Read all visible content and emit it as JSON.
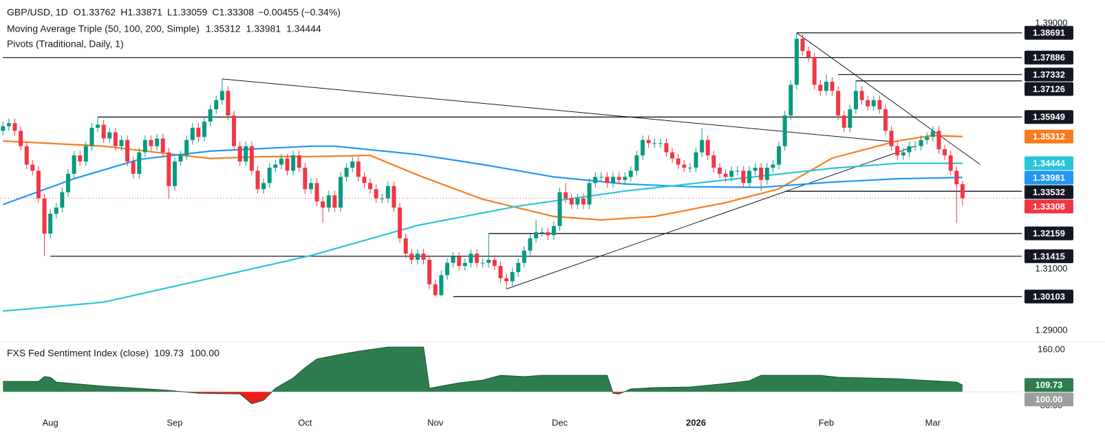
{
  "chart_data": {
    "type": "candlestick",
    "symbol": "GBP/USD, 1D",
    "ohlc_prefixes": [
      "O",
      "H",
      "L",
      "C"
    ],
    "change": "−0.00455 (−0.34%)",
    "ma_title": "Moving Average Triple (50, 100, 200, Simple)",
    "pivot_title": "Pivots (Traditional, Daily, 1)",
    "up_color": "#089981",
    "down_color": "#f23645",
    "xlim": [
      -0.5,
      172
    ],
    "ylim": [
      1.2875,
      1.3976
    ],
    "yticks": [
      {
        "value": 1.39,
        "label": "1.39000"
      },
      {
        "value": 1.31,
        "label": "1.31000"
      },
      {
        "value": 1.29,
        "label": "1.29000"
      }
    ],
    "xticks": [
      {
        "value": 8,
        "label": "Aug"
      },
      {
        "value": 29,
        "label": "Sep"
      },
      {
        "value": 51,
        "label": "Oct"
      },
      {
        "value": 73,
        "label": "Nov"
      },
      {
        "value": 94,
        "label": "Dec"
      },
      {
        "value": 117,
        "label": "2026"
      },
      {
        "value": 139,
        "label": "Feb"
      },
      {
        "value": 157,
        "label": "Mar"
      }
    ],
    "candles": [
      [
        1.355,
        1.358,
        1.3535,
        1.3565
      ],
      [
        1.3565,
        1.359,
        1.355,
        1.3575
      ],
      [
        1.3575,
        1.359,
        1.3535,
        1.355
      ],
      [
        1.355,
        1.3565,
        1.3485,
        1.35
      ],
      [
        1.35,
        1.3515,
        1.3425,
        1.344
      ],
      [
        1.344,
        1.3455,
        1.3405,
        1.342
      ],
      [
        1.342,
        1.3435,
        1.3315,
        1.333
      ],
      [
        1.333,
        1.3345,
        1.3142,
        1.3215
      ],
      [
        1.3215,
        1.3295,
        1.32,
        1.328
      ],
      [
        1.328,
        1.3315,
        1.3265,
        1.33
      ],
      [
        1.33,
        1.3365,
        1.3285,
        1.335
      ],
      [
        1.335,
        1.3425,
        1.3335,
        1.341
      ],
      [
        1.341,
        1.3485,
        1.3395,
        1.347
      ],
      [
        1.347,
        1.3485,
        1.3435,
        1.345
      ],
      [
        1.345,
        1.3515,
        1.3435,
        1.35
      ],
      [
        1.35,
        1.3575,
        1.3485,
        1.356
      ],
      [
        1.356,
        1.3595,
        1.3545,
        1.357
      ],
      [
        1.357,
        1.3585,
        1.351,
        1.3525
      ],
      [
        1.3525,
        1.356,
        1.351,
        1.3545
      ],
      [
        1.3545,
        1.356,
        1.3485,
        1.35
      ],
      [
        1.35,
        1.3535,
        1.3485,
        1.352
      ],
      [
        1.352,
        1.3535,
        1.3435,
        1.345
      ],
      [
        1.345,
        1.3465,
        1.3395,
        1.341
      ],
      [
        1.341,
        1.3495,
        1.3395,
        1.348
      ],
      [
        1.348,
        1.3535,
        1.3465,
        1.352
      ],
      [
        1.352,
        1.3535,
        1.3485,
        1.35
      ],
      [
        1.35,
        1.354,
        1.3485,
        1.3525
      ],
      [
        1.3525,
        1.354,
        1.3465,
        1.348
      ],
      [
        1.348,
        1.3495,
        1.333,
        1.337
      ],
      [
        1.337,
        1.3465,
        1.3355,
        1.345
      ],
      [
        1.345,
        1.3485,
        1.3435,
        1.347
      ],
      [
        1.347,
        1.3535,
        1.3455,
        1.352
      ],
      [
        1.352,
        1.3575,
        1.3505,
        1.356
      ],
      [
        1.356,
        1.3575,
        1.3515,
        1.353
      ],
      [
        1.353,
        1.3595,
        1.3515,
        1.358
      ],
      [
        1.358,
        1.3635,
        1.3565,
        1.362
      ],
      [
        1.362,
        1.3665,
        1.3605,
        1.365
      ],
      [
        1.365,
        1.3719,
        1.3635,
        1.368
      ],
      [
        1.368,
        1.3695,
        1.3585,
        1.36
      ],
      [
        1.36,
        1.3615,
        1.3485,
        1.35
      ],
      [
        1.35,
        1.3515,
        1.3435,
        1.345
      ],
      [
        1.345,
        1.3515,
        1.3435,
        1.35
      ],
      [
        1.35,
        1.3515,
        1.3405,
        1.342
      ],
      [
        1.342,
        1.3435,
        1.3345,
        1.336
      ],
      [
        1.336,
        1.3395,
        1.3345,
        1.338
      ],
      [
        1.338,
        1.3445,
        1.3365,
        1.343
      ],
      [
        1.343,
        1.3455,
        1.3415,
        1.344
      ],
      [
        1.344,
        1.3475,
        1.3425,
        1.346
      ],
      [
        1.346,
        1.3475,
        1.3405,
        1.342
      ],
      [
        1.342,
        1.3485,
        1.3405,
        1.347
      ],
      [
        1.347,
        1.3485,
        1.3415,
        1.343
      ],
      [
        1.343,
        1.3445,
        1.3345,
        1.336
      ],
      [
        1.336,
        1.3395,
        1.3345,
        1.338
      ],
      [
        1.338,
        1.3395,
        1.3305,
        1.332
      ],
      [
        1.332,
        1.3335,
        1.325,
        1.33
      ],
      [
        1.33,
        1.3355,
        1.3285,
        1.334
      ],
      [
        1.334,
        1.3355,
        1.3285,
        1.33
      ],
      [
        1.33,
        1.3415,
        1.3285,
        1.34
      ],
      [
        1.34,
        1.3445,
        1.3385,
        1.343
      ],
      [
        1.343,
        1.3465,
        1.3415,
        1.345
      ],
      [
        1.345,
        1.3465,
        1.3385,
        1.34
      ],
      [
        1.34,
        1.3415,
        1.3365,
        1.338
      ],
      [
        1.338,
        1.3395,
        1.3345,
        1.336
      ],
      [
        1.336,
        1.3375,
        1.3315,
        1.333
      ],
      [
        1.333,
        1.3345,
        1.3315,
        1.333
      ],
      [
        1.333,
        1.3385,
        1.3315,
        1.337
      ],
      [
        1.337,
        1.3385,
        1.3285,
        1.33
      ],
      [
        1.33,
        1.3315,
        1.3185,
        1.32
      ],
      [
        1.32,
        1.3215,
        1.3135,
        1.315
      ],
      [
        1.315,
        1.3165,
        1.3115,
        1.313
      ],
      [
        1.313,
        1.3165,
        1.3115,
        1.315
      ],
      [
        1.315,
        1.3165,
        1.3115,
        1.313
      ],
      [
        1.313,
        1.3145,
        1.3035,
        1.305
      ],
      [
        1.305,
        1.3065,
        1.301,
        1.3015
      ],
      [
        1.3015,
        1.3095,
        1.3012,
        1.308
      ],
      [
        1.308,
        1.3135,
        1.3065,
        1.312
      ],
      [
        1.312,
        1.3155,
        1.3105,
        1.314
      ],
      [
        1.314,
        1.3155,
        1.3095,
        1.311
      ],
      [
        1.311,
        1.3135,
        1.3095,
        1.312
      ],
      [
        1.312,
        1.3165,
        1.3105,
        1.315
      ],
      [
        1.315,
        1.3165,
        1.3105,
        1.312
      ],
      [
        1.312,
        1.3135,
        1.3105,
        1.312
      ],
      [
        1.312,
        1.3216,
        1.3105,
        1.313
      ],
      [
        1.313,
        1.3145,
        1.3095,
        1.311
      ],
      [
        1.311,
        1.3125,
        1.3055,
        1.307
      ],
      [
        1.307,
        1.3085,
        1.3035,
        1.306
      ],
      [
        1.306,
        1.3105,
        1.3045,
        1.309
      ],
      [
        1.309,
        1.3135,
        1.3075,
        1.312
      ],
      [
        1.312,
        1.3175,
        1.3105,
        1.316
      ],
      [
        1.316,
        1.3215,
        1.3145,
        1.32
      ],
      [
        1.32,
        1.326,
        1.3185,
        1.322
      ],
      [
        1.322,
        1.3235,
        1.3205,
        1.322
      ],
      [
        1.322,
        1.3235,
        1.3195,
        1.321
      ],
      [
        1.321,
        1.3255,
        1.3195,
        1.324
      ],
      [
        1.324,
        1.3365,
        1.3225,
        1.335
      ],
      [
        1.335,
        1.338,
        1.3315,
        1.333
      ],
      [
        1.333,
        1.3345,
        1.3295,
        1.331
      ],
      [
        1.331,
        1.3345,
        1.3295,
        1.333
      ],
      [
        1.333,
        1.3345,
        1.3295,
        1.331
      ],
      [
        1.331,
        1.3395,
        1.3295,
        1.338
      ],
      [
        1.338,
        1.3415,
        1.3365,
        1.34
      ],
      [
        1.34,
        1.3415,
        1.3385,
        1.34
      ],
      [
        1.34,
        1.3415,
        1.3365,
        1.338
      ],
      [
        1.338,
        1.3415,
        1.3365,
        1.34
      ],
      [
        1.34,
        1.3415,
        1.3375,
        1.339
      ],
      [
        1.339,
        1.3415,
        1.3375,
        1.34
      ],
      [
        1.34,
        1.3435,
        1.3385,
        1.342
      ],
      [
        1.342,
        1.3485,
        1.3405,
        1.347
      ],
      [
        1.347,
        1.3535,
        1.3455,
        1.352
      ],
      [
        1.352,
        1.3535,
        1.3495,
        1.351
      ],
      [
        1.351,
        1.3525,
        1.3495,
        1.351
      ],
      [
        1.351,
        1.3525,
        1.3495,
        1.351
      ],
      [
        1.351,
        1.3525,
        1.3465,
        1.348
      ],
      [
        1.348,
        1.3495,
        1.3445,
        1.346
      ],
      [
        1.346,
        1.3475,
        1.3425,
        1.344
      ],
      [
        1.344,
        1.3455,
        1.3415,
        1.343
      ],
      [
        1.343,
        1.3445,
        1.3415,
        1.343
      ],
      [
        1.343,
        1.3495,
        1.3415,
        1.348
      ],
      [
        1.348,
        1.356,
        1.3465,
        1.352
      ],
      [
        1.352,
        1.3535,
        1.3455,
        1.347
      ],
      [
        1.347,
        1.3485,
        1.3415,
        1.343
      ],
      [
        1.343,
        1.3445,
        1.3395,
        1.341
      ],
      [
        1.341,
        1.3425,
        1.3385,
        1.34
      ],
      [
        1.34,
        1.3435,
        1.3385,
        1.342
      ],
      [
        1.342,
        1.3435,
        1.3405,
        1.342
      ],
      [
        1.342,
        1.3435,
        1.3365,
        1.338
      ],
      [
        1.338,
        1.3435,
        1.3365,
        1.342
      ],
      [
        1.342,
        1.3445,
        1.3405,
        1.343
      ],
      [
        1.343,
        1.3445,
        1.3353,
        1.339
      ],
      [
        1.339,
        1.3445,
        1.3375,
        1.343
      ],
      [
        1.343,
        1.3455,
        1.3415,
        1.344
      ],
      [
        1.344,
        1.3515,
        1.3425,
        1.35
      ],
      [
        1.35,
        1.3615,
        1.3485,
        1.36
      ],
      [
        1.36,
        1.3715,
        1.3585,
        1.37
      ],
      [
        1.37,
        1.3869,
        1.3685,
        1.385
      ],
      [
        1.385,
        1.3865,
        1.3795,
        1.381
      ],
      [
        1.381,
        1.3825,
        1.3775,
        1.379
      ],
      [
        1.379,
        1.3805,
        1.3685,
        1.37
      ],
      [
        1.37,
        1.3715,
        1.3665,
        1.368
      ],
      [
        1.368,
        1.3733,
        1.3665,
        1.371
      ],
      [
        1.371,
        1.3725,
        1.3665,
        1.368
      ],
      [
        1.368,
        1.3695,
        1.3585,
        1.36
      ],
      [
        1.36,
        1.3615,
        1.3545,
        1.356
      ],
      [
        1.356,
        1.3635,
        1.3545,
        1.362
      ],
      [
        1.362,
        1.3713,
        1.3605,
        1.368
      ],
      [
        1.368,
        1.3695,
        1.3635,
        1.365
      ],
      [
        1.365,
        1.3665,
        1.3615,
        1.363
      ],
      [
        1.363,
        1.3665,
        1.3615,
        1.365
      ],
      [
        1.365,
        1.3665,
        1.3605,
        1.362
      ],
      [
        1.362,
        1.3635,
        1.3535,
        1.355
      ],
      [
        1.355,
        1.3565,
        1.3485,
        1.35
      ],
      [
        1.35,
        1.3515,
        1.3455,
        1.347
      ],
      [
        1.347,
        1.3495,
        1.3455,
        1.348
      ],
      [
        1.348,
        1.3515,
        1.3465,
        1.35
      ],
      [
        1.35,
        1.3515,
        1.3485,
        1.35
      ],
      [
        1.35,
        1.3535,
        1.3485,
        1.352
      ],
      [
        1.352,
        1.3545,
        1.3505,
        1.353
      ],
      [
        1.353,
        1.3565,
        1.3515,
        1.355
      ],
      [
        1.355,
        1.3565,
        1.3475,
        1.349
      ],
      [
        1.349,
        1.3505,
        1.3455,
        1.347
      ],
      [
        1.347,
        1.3485,
        1.3405,
        1.342
      ],
      [
        1.342,
        1.3435,
        1.325,
        1.3376
      ],
      [
        1.33762,
        1.33871,
        1.33059,
        1.33308
      ]
    ],
    "current_price_color": "#f23645",
    "moving_averages": [
      {
        "color": "#f57c1f",
        "x": [
          0,
          17,
          29,
          35,
          44,
          52,
          62,
          70,
          81,
          93,
          101,
          110,
          122,
          131,
          140,
          151,
          157,
          162
        ],
        "values": [
          1.3517,
          1.35,
          1.3473,
          1.346,
          1.3466,
          1.3466,
          1.347,
          1.3406,
          1.3327,
          1.3271,
          1.326,
          1.3271,
          1.3316,
          1.3361,
          1.3461,
          1.3517,
          1.3535,
          1.35312
        ]
      },
      {
        "color": "#2196f3",
        "x": [
          0,
          12,
          23,
          35,
          52,
          56,
          70,
          81,
          93,
          105,
          116,
          128,
          140,
          151,
          162
        ],
        "values": [
          1.331,
          1.3394,
          1.3457,
          1.3484,
          1.35,
          1.35,
          1.3473,
          1.344,
          1.34,
          1.3377,
          1.3368,
          1.3366,
          1.3383,
          1.3394,
          1.33981
        ]
      },
      {
        "color": "#26c6da",
        "x": [
          0,
          17,
          35,
          52,
          70,
          87,
          105,
          122,
          140,
          151,
          162
        ],
        "values": [
          1.2963,
          1.2992,
          1.307,
          1.3144,
          1.3242,
          1.3305,
          1.3354,
          1.339,
          1.3428,
          1.3444,
          1.34444
        ]
      }
    ],
    "pivots": [
      {
        "value": 1.38691,
        "start": 134
      },
      {
        "value": 1.37886,
        "start": 0
      },
      {
        "value": 1.37332,
        "start": 141
      },
      {
        "value": 1.37126,
        "start": 144
      },
      {
        "value": 1.35949,
        "start": 16
      },
      {
        "value": 1.33532,
        "start": 132
      },
      {
        "value": 1.32159,
        "start": 82
      },
      {
        "value": 1.31415,
        "start": 8
      },
      {
        "value": 1.30103,
        "start": 76
      }
    ],
    "trendlines": [
      [
        [
          37,
          1.3719
        ],
        [
          150,
          1.3515
        ]
      ],
      [
        [
          85,
          1.3035
        ],
        [
          154,
          1.35
        ]
      ],
      [
        [
          134,
          1.3869
        ],
        [
          165,
          1.344
        ]
      ]
    ],
    "sentiment": {
      "title": "FXS Fed Sentiment Index (close)",
      "ylim": [
        51,
        169
      ],
      "yticks": [
        {
          "value": 160,
          "label": "160.00"
        },
        {
          "value": 80,
          "label": "80.00"
        }
      ],
      "baseline": {
        "value": 100,
        "label": "100.00"
      },
      "up_color": "#2e7d4f",
      "down_color": "#f21b1b",
      "baseline_color": "#9e9e9e",
      "x": [
        0,
        6,
        7,
        8,
        9,
        17,
        23,
        28,
        33,
        40,
        42,
        44,
        46,
        49,
        51,
        53,
        56,
        60,
        65,
        71,
        72,
        74,
        77,
        81,
        84,
        88,
        91,
        102,
        103,
        104,
        106,
        110,
        116,
        122,
        126,
        128,
        138,
        141,
        151,
        155,
        161,
        162
      ],
      "values": [
        114.8,
        114.8,
        121.7,
        120.7,
        113.8,
        107.9,
        104.9,
        102,
        98,
        97,
        83,
        88,
        105,
        119.7,
        134.4,
        147,
        152,
        158,
        164,
        164,
        105,
        108,
        112.8,
        116.7,
        123.6,
        121.7,
        123.6,
        123.6,
        98,
        97,
        104,
        106,
        106.9,
        111.8,
        115.7,
        123.6,
        123.6,
        120.7,
        118.7,
        116.7,
        113.8,
        109.73
      ]
    }
  }
}
